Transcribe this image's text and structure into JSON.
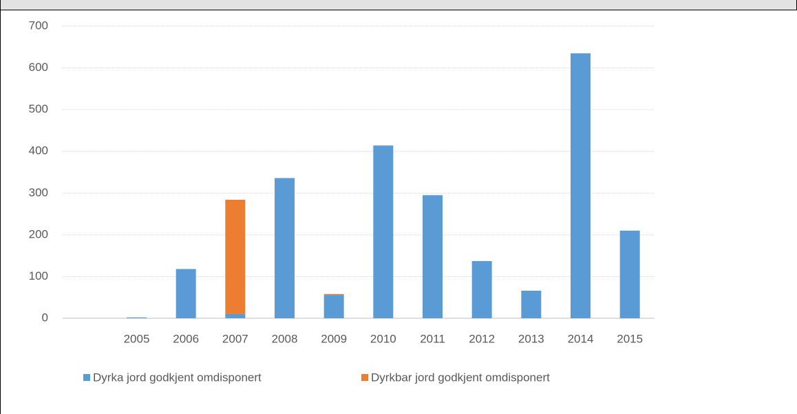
{
  "chart_data": {
    "type": "bar",
    "stacked": true,
    "categories": [
      null,
      "2005",
      "2006",
      "2007",
      "2008",
      "2009",
      "2010",
      "2011",
      "2012",
      "2013",
      "2014",
      "2015"
    ],
    "series": [
      {
        "name": "Dyrka jord godkjent omdisponert",
        "color": "#5b9bd5",
        "values": [
          null,
          2,
          118,
          10,
          336,
          56,
          414,
          295,
          137,
          66,
          635,
          210
        ]
      },
      {
        "name": "Dyrkbar jord godkjent omdisponert",
        "color": "#ed7d31",
        "values": [
          null,
          0,
          0,
          274,
          0,
          2,
          0,
          0,
          0,
          0,
          0,
          0
        ]
      }
    ],
    "ylim": [
      0,
      700
    ],
    "yticks": [
      0,
      100,
      200,
      300,
      400,
      500,
      600,
      700
    ],
    "grid": true,
    "legend": "bottom"
  }
}
